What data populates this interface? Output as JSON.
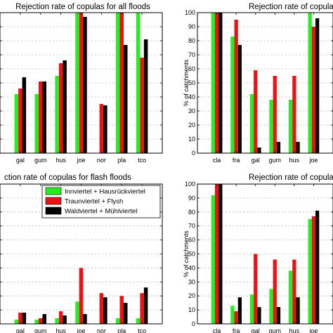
{
  "colors": {
    "series": [
      "#22ee22",
      "#ee1111",
      "#000000"
    ]
  },
  "legend": {
    "entries": [
      "Innviertel + Hausrückviertel",
      "Traunviertel + Flysh",
      "Waldviertel + Mühlviertel"
    ]
  },
  "chart_data": [
    {
      "type": "bar",
      "title": "Rejection rate of copulas for all floods",
      "xlabel": "",
      "ylabel": "",
      "categories": [
        "gal",
        "gum",
        "hus",
        "joe",
        "nor",
        "pla",
        "tco"
      ],
      "ylim": [
        0,
        100
      ],
      "grid": true,
      "series": [
        {
          "values": [
            42,
            42,
            55,
            100,
            0,
            100,
            100
          ]
        },
        {
          "values": [
            46,
            51,
            64,
            100,
            35,
            100,
            68
          ]
        },
        {
          "values": [
            54,
            51,
            66,
            97,
            34,
            77,
            81
          ]
        }
      ]
    },
    {
      "type": "bar",
      "title": "Rejection rate of copulas for sy",
      "xlabel": "",
      "ylabel": "% of catchments",
      "categories": [
        "cla",
        "fra",
        "gal",
        "gum",
        "hus",
        "joe"
      ],
      "ylim": [
        0,
        100
      ],
      "yticks": [
        0,
        10,
        20,
        30,
        40,
        50,
        60,
        70,
        80,
        90,
        100
      ],
      "grid": true,
      "series": [
        {
          "values": [
            100,
            83,
            42,
            38,
            38,
            100
          ]
        },
        {
          "values": [
            100,
            95,
            59,
            55,
            55,
            90
          ]
        },
        {
          "values": [
            100,
            77,
            4,
            8,
            8,
            96
          ]
        }
      ]
    },
    {
      "type": "bar",
      "title": "ction rate of copulas for flash floods",
      "xlabel": "",
      "ylabel": "",
      "categories": [
        "gal",
        "gum",
        "hus",
        "joe",
        "nor",
        "pla",
        "tco"
      ],
      "ylim": [
        0,
        100
      ],
      "grid": true,
      "legend_position": "top-left",
      "series": [
        {
          "values": [
            3,
            3,
            4,
            16,
            0,
            4,
            4
          ]
        },
        {
          "values": [
            8,
            4,
            9,
            40,
            22,
            20,
            22
          ]
        },
        {
          "values": [
            8,
            7,
            6,
            7,
            19,
            15,
            26
          ]
        }
      ]
    },
    {
      "type": "bar",
      "title": "Rejection rate of copulas for sno",
      "xlabel": "",
      "ylabel": "% of catchments",
      "categories": [
        "cla",
        "fra",
        "gal",
        "gum",
        "hus",
        "joe"
      ],
      "ylim": [
        0,
        100
      ],
      "yticks": [
        0,
        10,
        20,
        30,
        40,
        50,
        60,
        70,
        80,
        90,
        100
      ],
      "grid": true,
      "series": [
        {
          "values": [
            92,
            13,
            21,
            25,
            38,
            75
          ]
        },
        {
          "values": [
            100,
            9,
            50,
            46,
            46,
            77
          ]
        },
        {
          "values": [
            100,
            19,
            12,
            12,
            19,
            81
          ]
        }
      ]
    }
  ]
}
